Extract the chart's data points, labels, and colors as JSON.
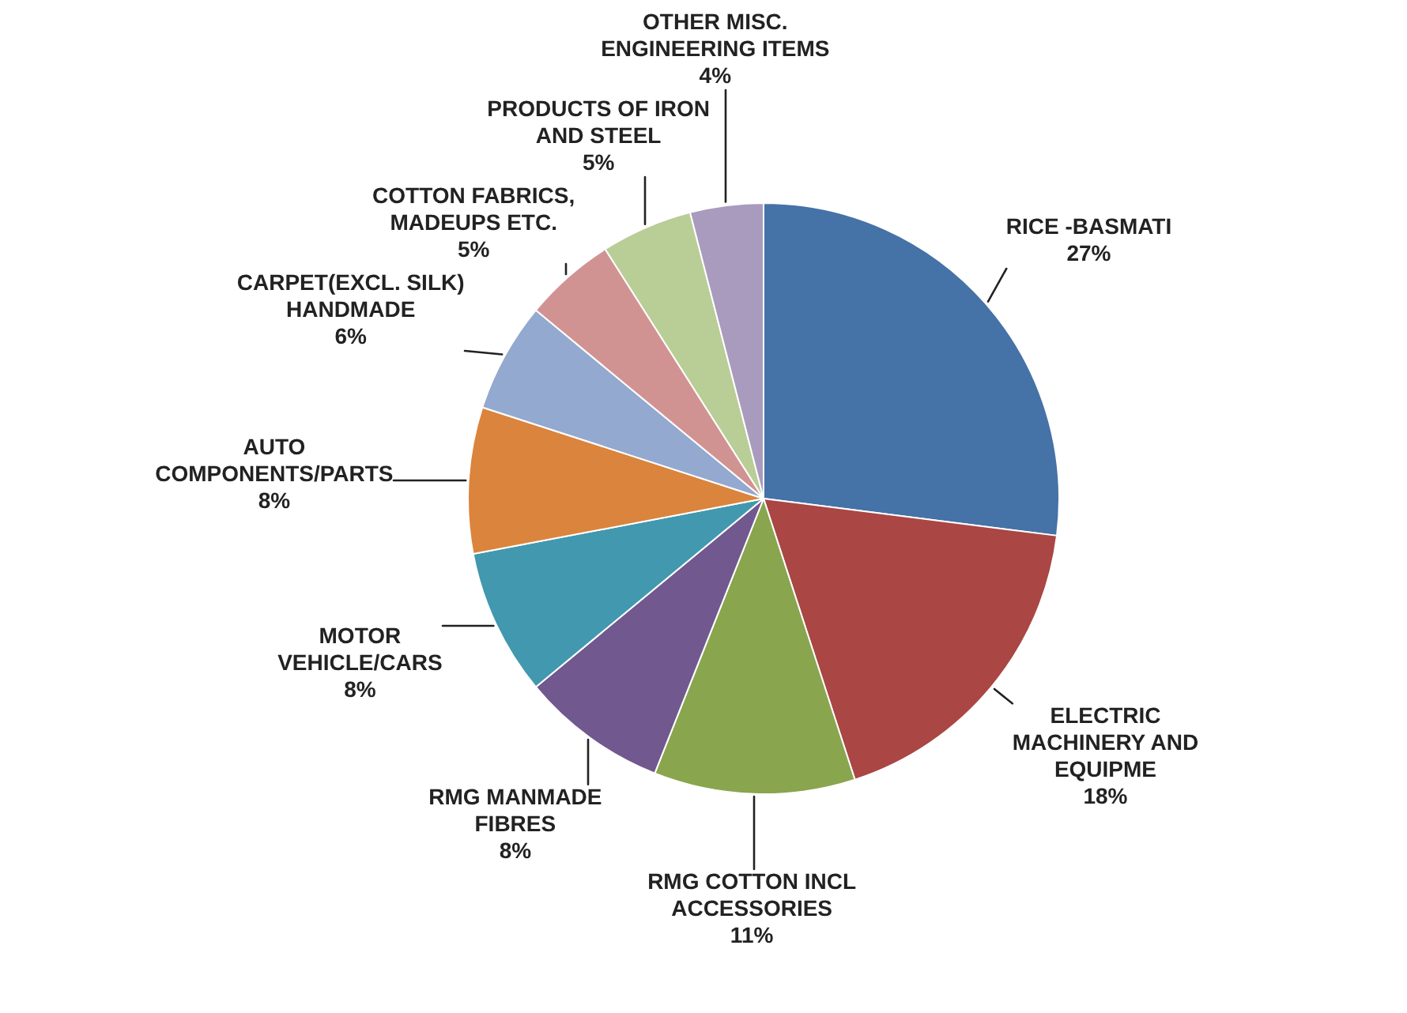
{
  "chart_data": {
    "type": "pie",
    "categories": [
      "RICE -BASMATI",
      "ELECTRIC MACHINERY AND EQUIPME",
      "RMG COTTON INCL ACCESSORIES",
      "RMG MANMADE FIBRES",
      "MOTOR VEHICLE/CARS",
      "AUTO COMPONENTS/PARTS",
      "CARPET(EXCL. SILK) HANDMADE",
      "COTTON FABRICS, MADEUPS ETC.",
      "PRODUCTS OF IRON AND STEEL",
      "OTHER MISC. ENGINEERING ITEMS"
    ],
    "values": [
      27,
      18,
      11,
      8,
      8,
      8,
      6,
      5,
      5,
      4
    ],
    "value_labels": [
      "27%",
      "18%",
      "11%",
      "8%",
      "8%",
      "8%",
      "6%",
      "5%",
      "5%",
      "4%"
    ],
    "colors": [
      "#4572a7",
      "#aa4643",
      "#89a54e",
      "#71588f",
      "#4198af",
      "#db843d",
      "#93a9cf",
      "#d19392",
      "#b9cd96",
      "#a99bbd"
    ],
    "legend": false
  }
}
